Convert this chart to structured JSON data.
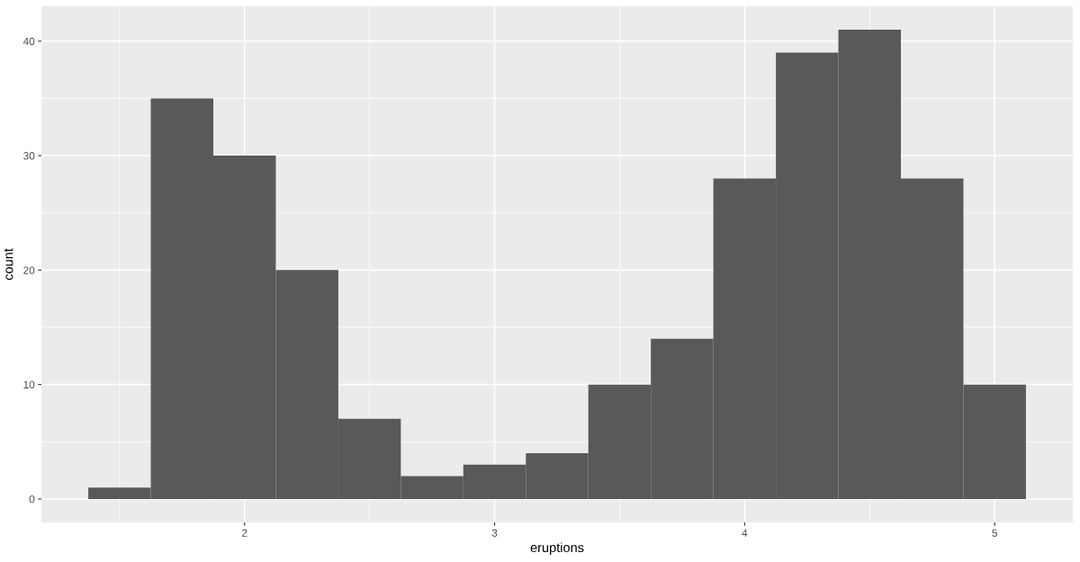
{
  "chart_data": {
    "type": "histogram",
    "xlabel": "eruptions",
    "ylabel": "count",
    "bins": [
      1.375,
      1.625,
      1.875,
      2.125,
      2.375,
      2.625,
      2.875,
      3.125,
      3.375,
      3.625,
      3.875,
      4.125,
      4.375,
      4.625,
      4.875,
      5.125
    ],
    "values": [
      1,
      35,
      30,
      20,
      7,
      2,
      3,
      4,
      10,
      14,
      28,
      39,
      41,
      28,
      10
    ],
    "color": "#595959",
    "xlim": [
      1.1875,
      5.3125
    ],
    "ylim": [
      -2.05,
      43.05
    ],
    "xticks": [
      {
        "value": 1.5,
        "label": null
      },
      2,
      {
        "value": 2.5,
        "label": null
      },
      3,
      {
        "value": 3.5,
        "label": null
      },
      4,
      {
        "value": 4.5,
        "label": null
      },
      5
    ],
    "yticks": [
      0,
      {
        "value": 5,
        "label": null
      },
      10,
      {
        "value": 15,
        "label": null
      },
      20,
      {
        "value": 25,
        "label": null
      },
      30,
      {
        "value": 35,
        "label": null
      },
      40
    ],
    "grid": true
  }
}
